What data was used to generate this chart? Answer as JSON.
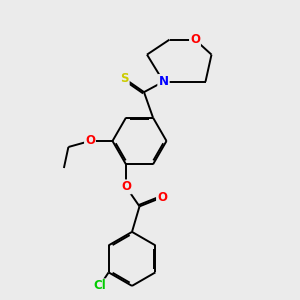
{
  "background_color": "#ebebeb",
  "bond_color": "#000000",
  "atom_colors": {
    "S": "#cccc00",
    "N": "#0000ff",
    "O": "#ff0000",
    "Cl": "#00cc00",
    "C": "#000000"
  },
  "lw": 1.4,
  "fs": 8.5
}
